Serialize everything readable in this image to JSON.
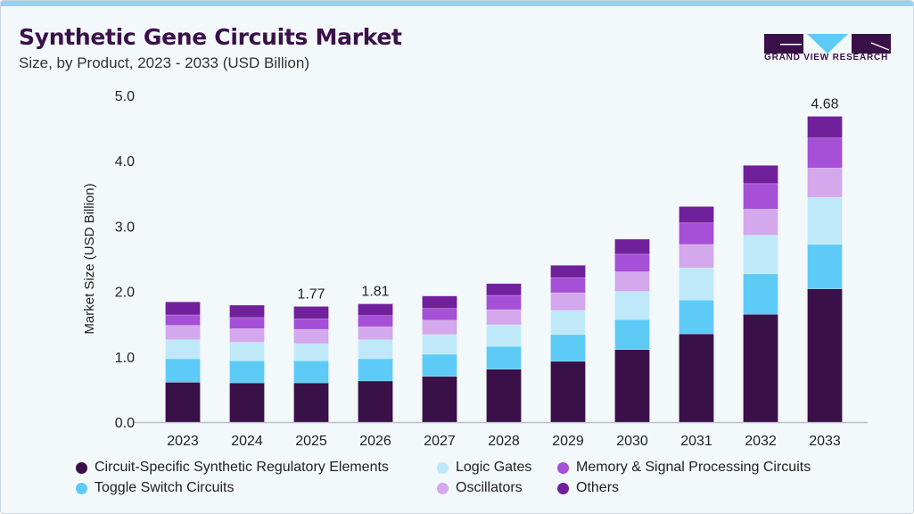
{
  "header": {
    "title": "Synthetic Gene Circuits Market",
    "subtitle": "Size, by Product, 2023 - 2033 (USD Billion)",
    "logo_text": "GRAND VIEW RESEARCH"
  },
  "chart_data": {
    "type": "bar",
    "stacked": true,
    "title": "Synthetic Gene Circuits Market",
    "subtitle": "Size, by Product, 2023 - 2033 (USD Billion)",
    "xlabel": "",
    "ylabel": "Market Size (USD Billion)",
    "ylim": [
      0,
      5
    ],
    "yticks": [
      "0.0",
      "1.0",
      "2.0",
      "3.0",
      "4.0",
      "5.0"
    ],
    "grid": false,
    "legend_position": "bottom",
    "categories": [
      "2023",
      "2024",
      "2025",
      "2026",
      "2027",
      "2028",
      "2029",
      "2030",
      "2031",
      "2032",
      "2033"
    ],
    "series": [
      {
        "name": "Circuit-Specific Synthetic Regulatory Elements",
        "color": "#3a1049",
        "values": [
          0.61,
          0.6,
          0.6,
          0.63,
          0.7,
          0.81,
          0.93,
          1.11,
          1.35,
          1.65,
          2.04
        ]
      },
      {
        "name": "Toggle Switch Circuits",
        "color": "#5ecbf7",
        "values": [
          0.36,
          0.34,
          0.34,
          0.34,
          0.34,
          0.35,
          0.41,
          0.46,
          0.52,
          0.62,
          0.68
        ]
      },
      {
        "name": "Logic Gates",
        "color": "#bfe9f9",
        "values": [
          0.29,
          0.28,
          0.26,
          0.29,
          0.3,
          0.33,
          0.37,
          0.43,
          0.49,
          0.59,
          0.72
        ]
      },
      {
        "name": "Oscillators",
        "color": "#d3a8ec",
        "values": [
          0.22,
          0.21,
          0.22,
          0.2,
          0.22,
          0.23,
          0.27,
          0.3,
          0.36,
          0.4,
          0.45
        ]
      },
      {
        "name": "Memory & Signal Processing Circuits",
        "color": "#a550d6",
        "values": [
          0.16,
          0.17,
          0.16,
          0.17,
          0.18,
          0.22,
          0.23,
          0.27,
          0.33,
          0.39,
          0.46
        ]
      },
      {
        "name": "Others",
        "color": "#70209b",
        "values": [
          0.2,
          0.19,
          0.19,
          0.18,
          0.19,
          0.18,
          0.19,
          0.23,
          0.25,
          0.28,
          0.33
        ]
      }
    ],
    "data_labels": {
      "2025": "1.77",
      "2026": "1.81",
      "2033": "4.68"
    }
  }
}
